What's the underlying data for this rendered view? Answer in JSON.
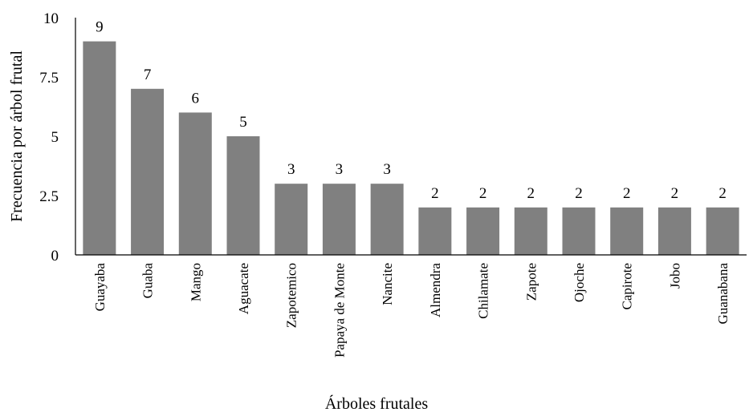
{
  "chart_data": {
    "type": "bar",
    "categories": [
      "Guayaba",
      "Guaba",
      "Mango",
      "Aguacate",
      "Zapotemico",
      "Papaya de Monte",
      "Nancite",
      "Almendra",
      "Chilamate",
      "Zapote",
      "Ojoche",
      "Capirote",
      "Jobo",
      "Guanabana"
    ],
    "values": [
      9,
      7,
      6,
      5,
      3,
      3,
      3,
      2,
      2,
      2,
      2,
      2,
      2,
      2
    ],
    "data_labels": [
      "9",
      "7",
      "6",
      "5",
      "3",
      "3",
      "3",
      "2",
      "2",
      "2",
      "2",
      "2",
      "2",
      "2"
    ],
    "title": "",
    "xlabel": "Árboles frutales",
    "ylabel": "Frecuencia por árbol frutal",
    "ylim": [
      0,
      10
    ],
    "yticks": [
      "0",
      "2.5",
      "5",
      "7.5",
      "10"
    ],
    "grid": false,
    "legend": "none",
    "bar_color": "#808080"
  }
}
